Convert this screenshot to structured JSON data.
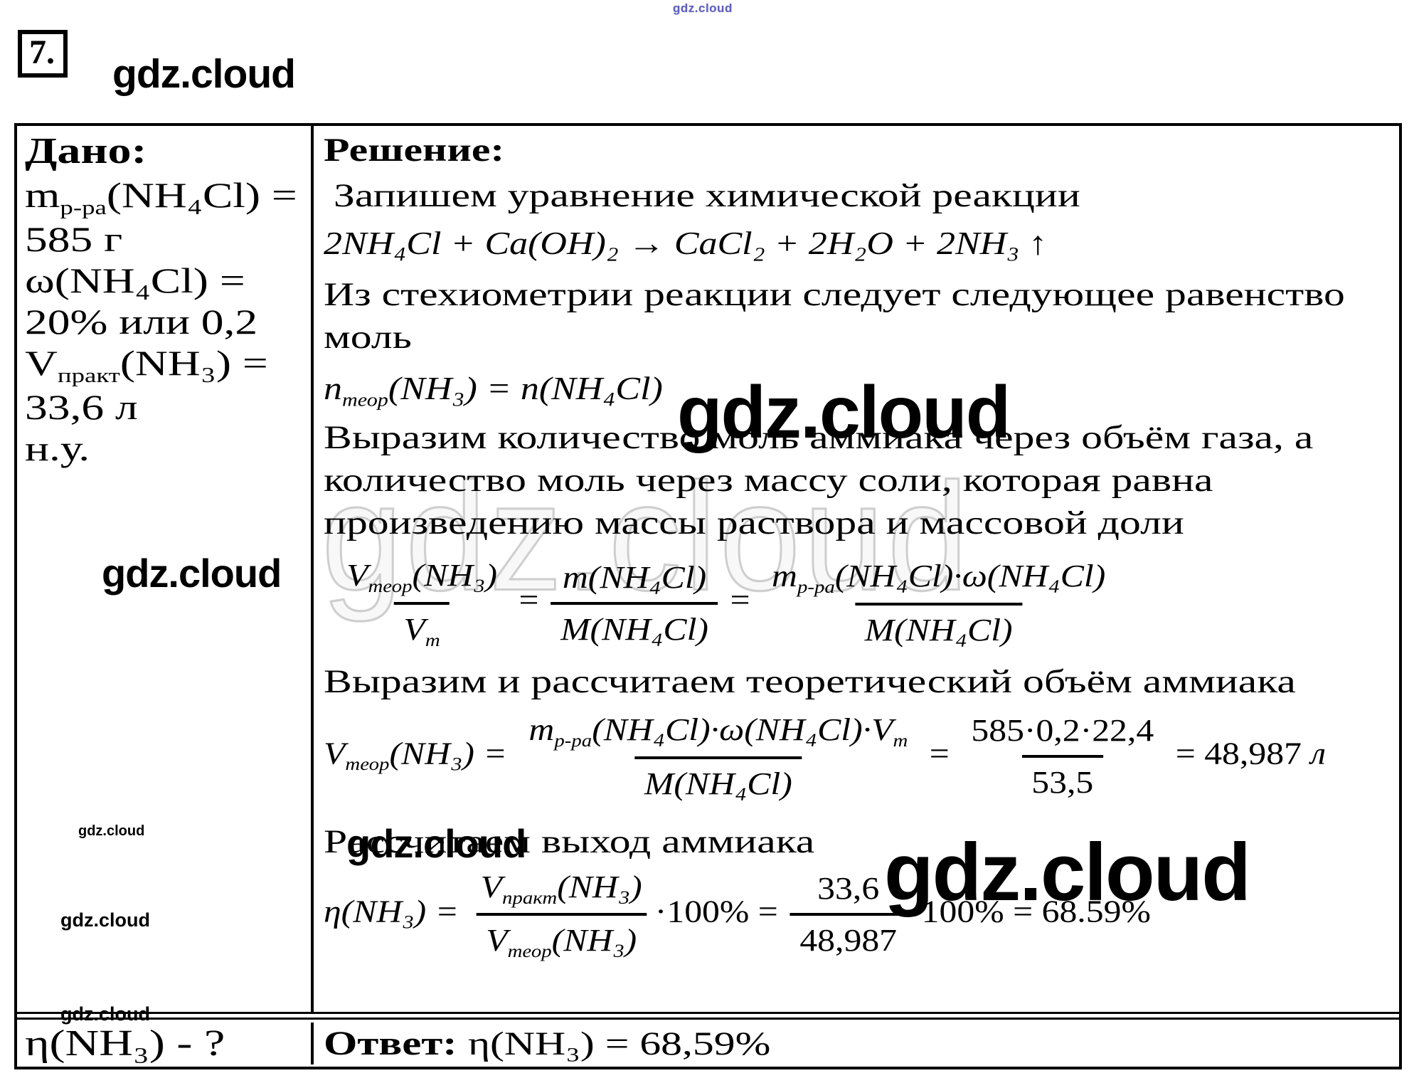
{
  "page": {
    "problem_number": "7."
  },
  "watermark": {
    "text": "gdz.cloud"
  },
  "given": {
    "header": "Дано:",
    "m_line": [
      [
        "t",
        "m"
      ],
      [
        "s",
        "р-ра"
      ],
      [
        "t",
        "(NH₄Cl) ="
      ]
    ],
    "m_value": "585 г",
    "w_line": "ω(NH₄Cl) =",
    "w_value": "20% или 0,2",
    "v_line": [
      [
        "t",
        "V"
      ],
      [
        "s",
        "практ"
      ],
      [
        "t",
        "(NH₃) ="
      ]
    ],
    "v_value": "33,6 л",
    "conditions": "н.у.",
    "question": "η(NH₃) - ?"
  },
  "solution": {
    "header": "Решение:",
    "step1": "Запишем уравнение химической реакции",
    "reaction": "2NH₄Cl + Ca(OH)₂ → CaCl₂ + 2H₂O + 2NH₃ ↑",
    "step2_line1": "Из стехиометрии реакции следует следующее равенство",
    "step2_line2": "моль",
    "mol_eq": [
      [
        "t",
        "n"
      ],
      [
        "s",
        "теор"
      ],
      [
        "t",
        "(NH₃) = n(NH₄Cl)"
      ]
    ],
    "step3_line1": "Выразим количество моль аммиака через объём газа, а",
    "step3_line2": "количество моль через массу соли, которая равна",
    "step3_line3": "произведению массы раствора и массовой доли",
    "frac_chain": [
      [
        "f",
        [
          [
            "t",
            "V"
          ],
          [
            "s",
            "теор"
          ],
          [
            "t",
            "(NH₃)"
          ]
        ],
        [
          [
            "t",
            "V"
          ],
          [
            "s",
            "m"
          ]
        ]
      ],
      [
        "r",
        " = "
      ],
      [
        "f",
        [
          [
            "t",
            "m(NH₄Cl)"
          ]
        ],
        [
          [
            "t",
            "M(NH₄Cl)"
          ]
        ]
      ],
      [
        "r",
        " = "
      ],
      [
        "f",
        [
          [
            "t",
            "m"
          ],
          [
            "s",
            "р-ра"
          ],
          [
            "t",
            "(NH₄Cl)·ω(NH₄Cl)"
          ]
        ],
        [
          [
            "t",
            "M(NH₄Cl)"
          ]
        ]
      ]
    ],
    "step4": "Выразим и рассчитаем теоретический объём аммиака",
    "v_teor": [
      [
        "t",
        "V"
      ],
      [
        "s",
        "теор"
      ],
      [
        "t",
        "(NH₃) = "
      ],
      [
        "f",
        [
          [
            "t",
            "m"
          ],
          [
            "s",
            "р-ра"
          ],
          [
            "t",
            "(NH₄Cl)·ω(NH₄Cl)·V"
          ],
          [
            "s",
            "m"
          ]
        ],
        [
          [
            "t",
            "M(NH₄Cl)"
          ]
        ]
      ],
      [
        "r",
        " = "
      ],
      [
        "f",
        [
          [
            "r",
            "585·0,2·22,4"
          ]
        ],
        [
          [
            "r",
            "53,5"
          ]
        ]
      ],
      [
        "r",
        " = 48,987 "
      ],
      [
        "t",
        "л"
      ]
    ],
    "step5": "Рассчитаем выход аммиака",
    "eta": [
      [
        "t",
        "η(NH₃) = "
      ],
      [
        "f",
        [
          [
            "t",
            "V"
          ],
          [
            "s",
            "практ"
          ],
          [
            "t",
            "(NH₃)"
          ]
        ],
        [
          [
            "t",
            "V"
          ],
          [
            "s",
            "теор"
          ],
          [
            "t",
            "(NH₃)"
          ]
        ]
      ],
      [
        "r",
        "·100% = "
      ],
      [
        "f",
        [
          [
            "r",
            "33,6"
          ]
        ],
        [
          [
            "r",
            "48,987"
          ]
        ]
      ],
      [
        "r",
        "·100% = 68.59%"
      ]
    ],
    "answer_label": "Ответ:",
    "answer_value": "η(NH₃) = 68,59%"
  }
}
